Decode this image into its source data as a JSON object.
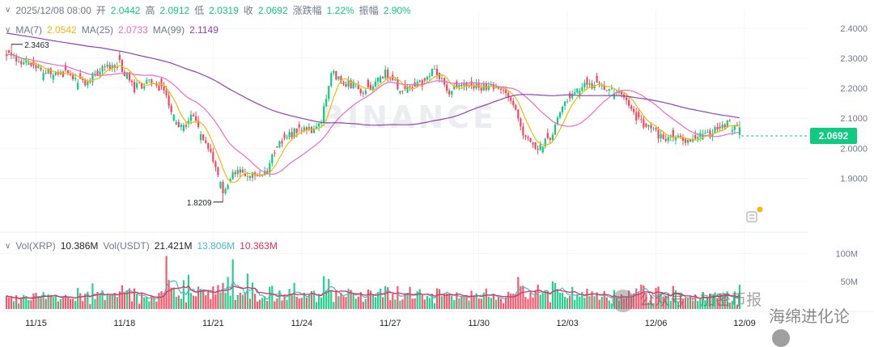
{
  "header": {
    "datetime": "2025/12/08 08:00",
    "open_label": "开",
    "open": "2.0442",
    "high_label": "高",
    "high": "2.0912",
    "low_label": "低",
    "low": "2.0319",
    "close_label": "收",
    "close": "2.0692",
    "change_label": "涨跌幅",
    "change": "1.22%",
    "amp_label": "振幅",
    "amp": "2.90%"
  },
  "ma_legend": {
    "ma7_label": "MA(7)",
    "ma7": "2.0542",
    "ma25_label": "MA(25)",
    "ma25": "2.0733",
    "ma99_label": "MA(99)",
    "ma99": "2.1149"
  },
  "vol_legend": {
    "xrp_label": "Vol(XRP)",
    "xrp": "10.386M",
    "usdt_label": "Vol(USDT)",
    "usdt": "21.421M",
    "ma_a": "13.806M",
    "ma_b": "10.363M"
  },
  "current_price": "2.0692",
  "colors": {
    "up": "#0ecb81",
    "down": "#f6465d",
    "ma7": "#f0b90b",
    "ma25": "#e66ec8",
    "ma99": "#8e44ad",
    "vol_ma5": "#4bb8c6",
    "vol_ma10": "#e0315c"
  },
  "watermark": {
    "brand": "BINANCE",
    "wechat": "公众号 · 加密币报",
    "mark2": "海绵进化论"
  },
  "chart_data": {
    "type": "candlestick",
    "ylim": [
      1.78,
      2.44
    ],
    "price_ticks": [
      "2.4000",
      "2.3000",
      "2.2000",
      "2.1000",
      "2.0000",
      "1.9000"
    ],
    "volume_ticks": [
      "100M",
      "50M"
    ],
    "volume_ylim": [
      0,
      120
    ],
    "x_ticks": [
      "11/15",
      "11/18",
      "11/21",
      "11/24",
      "11/27",
      "11/30",
      "12/03",
      "12/06",
      "12/09"
    ],
    "x_tick_index": [
      12,
      48,
      84,
      120,
      156,
      192,
      228,
      264,
      300
    ],
    "annotations": {
      "high": "2.3463",
      "high_value": 2.3463,
      "high_index": 2,
      "low": "1.8209",
      "low_value": 1.8209,
      "low_index": 88
    },
    "close_anchors": [
      [
        0,
        2.31
      ],
      [
        8,
        2.28
      ],
      [
        16,
        2.26
      ],
      [
        24,
        2.25
      ],
      [
        32,
        2.22
      ],
      [
        40,
        2.27
      ],
      [
        46,
        2.28
      ],
      [
        52,
        2.2
      ],
      [
        58,
        2.22
      ],
      [
        64,
        2.19
      ],
      [
        70,
        2.06
      ],
      [
        76,
        2.11
      ],
      [
        82,
        2.0
      ],
      [
        88,
        1.85
      ],
      [
        92,
        1.93
      ],
      [
        98,
        1.91
      ],
      [
        106,
        1.93
      ],
      [
        110,
        2.01
      ],
      [
        118,
        2.06
      ],
      [
        124,
        2.06
      ],
      [
        128,
        2.1
      ],
      [
        132,
        2.25
      ],
      [
        138,
        2.22
      ],
      [
        146,
        2.19
      ],
      [
        154,
        2.25
      ],
      [
        160,
        2.2
      ],
      [
        170,
        2.22
      ],
      [
        174,
        2.27
      ],
      [
        180,
        2.19
      ],
      [
        188,
        2.21
      ],
      [
        200,
        2.2
      ],
      [
        205,
        2.17
      ],
      [
        210,
        2.04
      ],
      [
        216,
        1.99
      ],
      [
        222,
        2.05
      ],
      [
        226,
        2.15
      ],
      [
        236,
        2.21
      ],
      [
        244,
        2.2
      ],
      [
        250,
        2.18
      ],
      [
        256,
        2.1
      ],
      [
        262,
        2.06
      ],
      [
        268,
        2.03
      ],
      [
        276,
        2.03
      ],
      [
        286,
        2.05
      ],
      [
        292,
        2.08
      ],
      [
        298,
        2.0692
      ]
    ],
    "candle_count": 299,
    "series": [
      {
        "name": "MA(7)",
        "value": "2.0542"
      },
      {
        "name": "MA(25)",
        "value": "2.0733"
      },
      {
        "name": "MA(99)",
        "value": "2.1149"
      }
    ],
    "volume_series": [
      {
        "name": "Vol(XRP)",
        "value": "10.386M"
      },
      {
        "name": "Vol(USDT)",
        "value": "21.421M"
      }
    ],
    "volume_spikes": [
      [
        65,
        96
      ],
      [
        72,
        52
      ],
      [
        74,
        62
      ],
      [
        90,
        58
      ],
      [
        92,
        90
      ],
      [
        98,
        64
      ],
      [
        100,
        48
      ],
      [
        108,
        42
      ],
      [
        116,
        28
      ],
      [
        132,
        34
      ],
      [
        164,
        40
      ],
      [
        168,
        36
      ],
      [
        208,
        58
      ],
      [
        216,
        44
      ],
      [
        222,
        50
      ],
      [
        230,
        40
      ],
      [
        238,
        32
      ],
      [
        258,
        44
      ],
      [
        264,
        38
      ],
      [
        272,
        34
      ],
      [
        290,
        28
      ]
    ]
  }
}
